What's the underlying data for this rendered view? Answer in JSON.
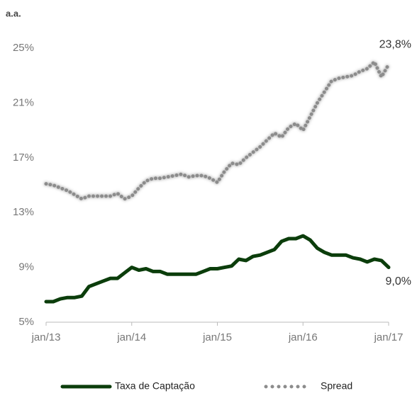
{
  "chart_data": {
    "type": "line",
    "ylabel": "a.a.",
    "categories": [
      "jan/13",
      null,
      null,
      null,
      null,
      null,
      null,
      null,
      null,
      null,
      null,
      null,
      "jan/14",
      null,
      null,
      null,
      null,
      null,
      null,
      null,
      null,
      null,
      null,
      null,
      "jan/15",
      null,
      null,
      null,
      null,
      null,
      null,
      null,
      null,
      null,
      null,
      null,
      "jan/16",
      null,
      null,
      null,
      null,
      null,
      null,
      null,
      null,
      null,
      null,
      null,
      "jan/17"
    ],
    "series": [
      {
        "name": "Taxa de Captação",
        "color": "#0b3d0b",
        "style": "solid",
        "values": [
          6.5,
          6.5,
          6.7,
          6.8,
          6.8,
          6.9,
          7.6,
          7.8,
          8.0,
          8.2,
          8.2,
          8.6,
          9.0,
          8.8,
          8.9,
          8.7,
          8.7,
          8.5,
          8.5,
          8.5,
          8.5,
          8.5,
          8.7,
          8.9,
          8.9,
          9.0,
          9.1,
          9.6,
          9.5,
          9.8,
          9.9,
          10.1,
          10.3,
          10.9,
          11.1,
          11.1,
          11.3,
          11.0,
          10.4,
          10.1,
          9.9,
          9.9,
          9.9,
          9.7,
          9.6,
          9.4,
          9.6,
          9.5,
          9.0
        ],
        "value_labels": [
          null,
          null,
          null,
          null,
          null,
          null,
          null,
          null,
          null,
          null,
          null,
          null,
          null,
          null,
          null,
          null,
          null,
          null,
          null,
          null,
          null,
          null,
          null,
          null,
          null,
          null,
          null,
          null,
          null,
          null,
          null,
          null,
          null,
          null,
          null,
          null,
          null,
          null,
          null,
          null,
          null,
          null,
          null,
          null,
          null,
          null,
          null,
          null,
          "9,0%"
        ]
      },
      {
        "name": "Spread",
        "color": "#8c8c8c",
        "style": "dotted",
        "values": [
          15.1,
          15.0,
          14.8,
          14.6,
          14.3,
          14.0,
          14.2,
          14.2,
          14.2,
          14.2,
          14.4,
          14.0,
          14.2,
          14.8,
          15.3,
          15.5,
          15.5,
          15.6,
          15.7,
          15.8,
          15.6,
          15.7,
          15.7,
          15.5,
          15.2,
          16.0,
          16.6,
          16.5,
          17.0,
          17.4,
          17.8,
          18.3,
          18.8,
          18.5,
          19.2,
          19.5,
          19.0,
          20.0,
          21.0,
          21.8,
          22.6,
          22.8,
          22.9,
          23.0,
          23.3,
          23.5,
          24.0,
          22.9,
          23.8
        ],
        "value_labels": [
          null,
          null,
          null,
          null,
          null,
          null,
          null,
          null,
          null,
          null,
          null,
          null,
          null,
          null,
          null,
          null,
          null,
          null,
          null,
          null,
          null,
          null,
          null,
          null,
          null,
          null,
          null,
          null,
          null,
          null,
          null,
          null,
          null,
          null,
          null,
          null,
          null,
          null,
          null,
          null,
          null,
          null,
          null,
          null,
          null,
          null,
          null,
          null,
          "23,8%"
        ]
      }
    ],
    "ylim": [
      5,
      25
    ],
    "yticks": [
      {
        "value": 5,
        "label": "5%"
      },
      {
        "value": 9,
        "label": "9%"
      },
      {
        "value": 13,
        "label": "13%"
      },
      {
        "value": 17,
        "label": "17%"
      },
      {
        "value": 21,
        "label": "21%"
      },
      {
        "value": 25,
        "label": "25%"
      }
    ],
    "grid": false,
    "legend": "bottom"
  }
}
